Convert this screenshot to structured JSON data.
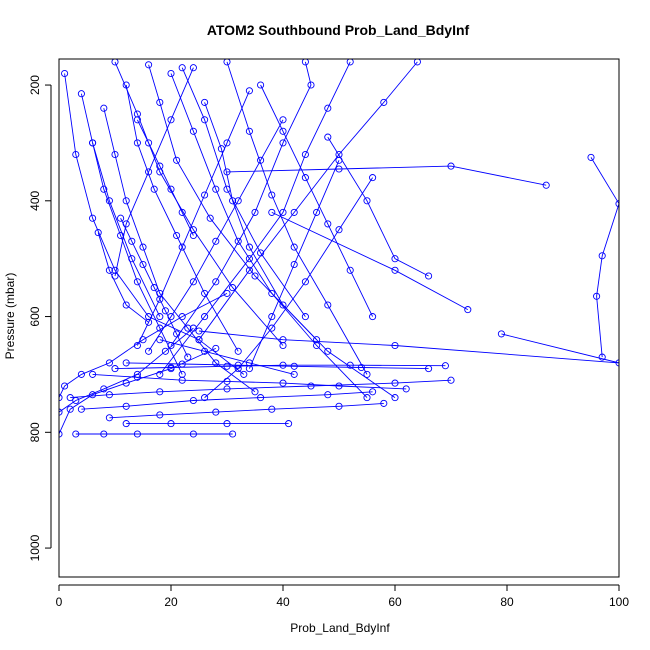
{
  "chart_data": {
    "type": "line",
    "title": "ATOM2 Southbound Prob_Land_BdyInf",
    "xlabel": "Prob_Land_BdyInf",
    "ylabel": "Pressure (mbar)",
    "xlim": [
      0,
      100
    ],
    "ylim": [
      1050,
      155
    ],
    "y_axis_inverted": true,
    "x_ticks": [
      0,
      20,
      40,
      60,
      80,
      100
    ],
    "y_ticks": [
      200,
      400,
      600,
      800,
      1000
    ],
    "grid": false,
    "legend": "none",
    "marker": "open-circle",
    "color": "#0000ff",
    "series": [
      {
        "x": [
          0,
          2,
          6,
          12,
          20,
          28
        ],
        "y": [
          803,
          760,
          735,
          715,
          690,
          655
        ]
      },
      {
        "x": [
          0,
          1,
          4,
          9,
          15,
          22,
          30
        ],
        "y": [
          740,
          720,
          700,
          680,
          640,
          600,
          560
        ]
      },
      {
        "x": [
          0,
          3,
          8,
          14,
          19,
          24
        ],
        "y": [
          765,
          745,
          725,
          700,
          660,
          620
        ]
      },
      {
        "x": [
          1,
          3,
          6,
          10,
          16,
          25,
          33
        ],
        "y": [
          180,
          320,
          430,
          520,
          600,
          640,
          700
        ]
      },
      {
        "x": [
          4,
          6,
          9,
          13,
          18
        ],
        "y": [
          215,
          300,
          400,
          500,
          600
        ]
      },
      {
        "x": [
          10,
          14,
          18,
          24,
          31,
          40
        ],
        "y": [
          160,
          250,
          350,
          450,
          550,
          650
        ]
      },
      {
        "x": [
          16,
          18,
          21,
          27,
          35,
          46
        ],
        "y": [
          165,
          230,
          330,
          430,
          530,
          640
        ]
      },
      {
        "x": [
          22,
          26,
          30,
          36,
          44
        ],
        "y": [
          170,
          260,
          380,
          490,
          600
        ]
      },
      {
        "x": [
          30,
          34,
          38,
          42,
          48,
          55
        ],
        "y": [
          160,
          280,
          390,
          480,
          580,
          700
        ]
      },
      {
        "x": [
          44,
          45,
          40,
          35,
          28,
          20
        ],
        "y": [
          160,
          200,
          300,
          420,
          540,
          650
        ]
      },
      {
        "x": [
          52,
          48,
          44,
          40,
          34,
          26,
          18
        ],
        "y": [
          160,
          240,
          320,
          420,
          500,
          600,
          700
        ]
      },
      {
        "x": [
          64,
          58,
          50,
          42,
          34,
          25
        ],
        "y": [
          160,
          230,
          320,
          420,
          520,
          640
        ]
      },
      {
        "x": [
          12,
          14,
          17,
          21,
          26,
          32
        ],
        "y": [
          200,
          300,
          380,
          460,
          560,
          660
        ]
      },
      {
        "x": [
          8,
          10,
          12,
          15,
          18,
          23,
          28,
          35
        ],
        "y": [
          240,
          320,
          400,
          480,
          560,
          620,
          680,
          730
        ]
      },
      {
        "x": [
          6,
          8,
          11,
          14,
          18,
          22
        ],
        "y": [
          300,
          380,
          460,
          540,
          620,
          700
        ]
      },
      {
        "x": [
          20,
          24,
          28,
          32,
          38,
          46,
          55
        ],
        "y": [
          180,
          280,
          380,
          470,
          560,
          650,
          740
        ]
      },
      {
        "x": [
          36,
          40,
          44,
          48,
          52,
          56
        ],
        "y": [
          200,
          280,
          360,
          440,
          520,
          600
        ]
      },
      {
        "x": [
          26,
          29,
          31,
          34,
          40,
          48,
          60
        ],
        "y": [
          230,
          310,
          400,
          480,
          580,
          660,
          740
        ]
      },
      {
        "x": [
          2,
          9,
          18,
          30,
          45,
          60,
          70
        ],
        "y": [
          740,
          735,
          730,
          725,
          720,
          715,
          710
        ]
      },
      {
        "x": [
          4,
          12,
          24,
          36,
          48,
          56
        ],
        "y": [
          760,
          755,
          745,
          740,
          735,
          730
        ]
      },
      {
        "x": [
          9,
          18,
          28,
          38,
          50,
          58
        ],
        "y": [
          775,
          770,
          765,
          760,
          755,
          750
        ]
      },
      {
        "x": [
          12,
          20,
          30,
          41
        ],
        "y": [
          785,
          785,
          785,
          785
        ]
      },
      {
        "x": [
          3,
          8,
          14,
          24,
          31
        ],
        "y": [
          803,
          803,
          803,
          803,
          803
        ]
      },
      {
        "x": [
          6,
          14,
          22,
          30,
          40,
          50,
          62
        ],
        "y": [
          700,
          705,
          710,
          712,
          715,
          720,
          725
        ]
      },
      {
        "x": [
          10,
          20,
          30,
          40,
          52,
          69
        ],
        "y": [
          690,
          688,
          686,
          684,
          684,
          685
        ]
      },
      {
        "x": [
          12,
          22,
          32,
          42,
          54,
          66
        ],
        "y": [
          680,
          682,
          684,
          686,
          688,
          690
        ]
      },
      {
        "x": [
          18,
          26,
          34,
          42
        ],
        "y": [
          640,
          660,
          680,
          700
        ]
      },
      {
        "x": [
          95,
          100,
          97,
          96,
          97
        ],
        "y": [
          325,
          405,
          495,
          565,
          670
        ]
      },
      {
        "x": [
          30,
          50,
          70,
          87
        ],
        "y": [
          350,
          345,
          340,
          373
        ]
      },
      {
        "x": [
          79,
          100,
          60,
          40,
          25
        ],
        "y": [
          630,
          680,
          650,
          640,
          625
        ]
      },
      {
        "x": [
          38,
          60,
          73
        ],
        "y": [
          420,
          520,
          588
        ]
      },
      {
        "x": [
          48,
          55,
          60,
          66
        ],
        "y": [
          290,
          400,
          500,
          530
        ]
      },
      {
        "x": [
          14,
          16,
          18,
          20,
          22,
          24
        ],
        "y": [
          260,
          300,
          340,
          380,
          420,
          460
        ]
      },
      {
        "x": [
          24,
          20,
          16,
          12,
          10
        ],
        "y": [
          170,
          260,
          350,
          440,
          530
        ]
      },
      {
        "x": [
          34,
          30,
          26,
          22,
          18,
          14
        ],
        "y": [
          210,
          300,
          390,
          480,
          570,
          650
        ]
      },
      {
        "x": [
          40,
          36,
          32,
          28,
          24,
          20,
          16
        ],
        "y": [
          260,
          330,
          400,
          470,
          540,
          600,
          660
        ]
      },
      {
        "x": [
          50,
          46,
          42,
          38,
          34
        ],
        "y": [
          330,
          420,
          510,
          600,
          690
        ]
      },
      {
        "x": [
          56,
          50,
          44,
          38,
          32,
          26
        ],
        "y": [
          360,
          450,
          540,
          620,
          690,
          740
        ]
      },
      {
        "x": [
          11,
          13,
          15,
          17,
          19,
          21,
          23
        ],
        "y": [
          430,
          470,
          510,
          550,
          590,
          630,
          670
        ]
      },
      {
        "x": [
          7,
          9,
          12,
          16
        ],
        "y": [
          455,
          520,
          580,
          610
        ]
      }
    ]
  }
}
